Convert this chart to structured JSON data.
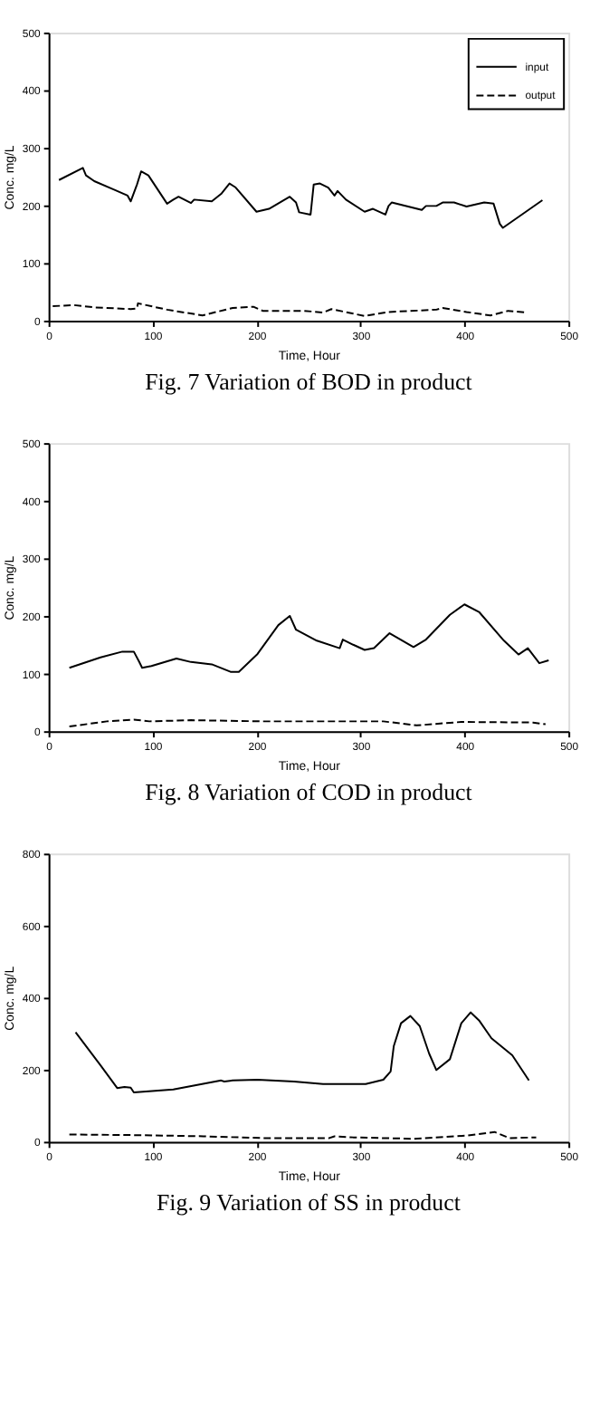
{
  "chart_data": [
    {
      "type": "line",
      "title": "Fig. 7 Variation of BOD in product",
      "xlabel": "Time, Hour",
      "ylabel": "Conc. mg/L",
      "xlim": [
        0,
        500
      ],
      "xticks": [
        0,
        100,
        200,
        300,
        400,
        500
      ],
      "ylim": [
        0,
        500
      ],
      "yticks": [
        0,
        100,
        200,
        300,
        400,
        500
      ],
      "grid": false,
      "legend": "top right",
      "series": [
        {
          "name": "input",
          "color": "#000000",
          "line_style": "solid",
          "x": [
            10,
            33,
            36,
            44,
            62,
            76,
            79,
            85,
            89,
            96,
            114,
            120,
            125,
            137,
            140,
            157,
            166,
            174,
            180,
            200,
            212,
            232,
            238,
            241,
            252,
            255,
            261,
            269,
            275,
            278,
            286,
            304,
            312,
            324,
            327,
            330,
            359,
            363,
            373,
            379,
            390,
            402,
            419,
            428,
            434,
            437,
            475
          ],
          "values": [
            244,
            265,
            252,
            242,
            228,
            217,
            207,
            236,
            259,
            252,
            203,
            210,
            215,
            204,
            210,
            207,
            220,
            238,
            231,
            189,
            194,
            215,
            205,
            188,
            184,
            236,
            238,
            231,
            217,
            225,
            210,
            189,
            194,
            184,
            199,
            205,
            192,
            199,
            199,
            205,
            205,
            198,
            205,
            203,
            168,
            161,
            209
          ]
        },
        {
          "name": "output",
          "color": "#000000",
          "line_style": "dashed",
          "x": [
            4,
            24,
            44,
            79,
            85,
            86,
            114,
            148,
            177,
            197,
            206,
            246,
            264,
            272,
            304,
            327,
            373,
            379,
            402,
            425,
            442,
            460
          ],
          "values": [
            25,
            27,
            23,
            20,
            21,
            30,
            19,
            9,
            22,
            24,
            17,
            17,
            14,
            20,
            8,
            15,
            19,
            22,
            15,
            9,
            17,
            14
          ]
        }
      ]
    },
    {
      "type": "line",
      "title": "Fig. 8 Variation of COD in product",
      "xlabel": "Time, Hour",
      "ylabel": "Conc. mg/L",
      "xlim": [
        0,
        500
      ],
      "xticks": [
        0,
        100,
        200,
        300,
        400,
        500
      ],
      "ylim": [
        0,
        500
      ],
      "yticks": [
        0,
        100,
        200,
        300,
        400,
        500
      ],
      "grid": false,
      "legend": "top right",
      "series": [
        {
          "name": "input",
          "color": "#000000",
          "line_style": "solid",
          "x": [
            20,
            50,
            71,
            82,
            87,
            90,
            99,
            123,
            137,
            157,
            175,
            183,
            201,
            221,
            232,
            238,
            258,
            280,
            283,
            293,
            304,
            313,
            328,
            351,
            363,
            386,
            400,
            414,
            438,
            452,
            461,
            472,
            481
          ],
          "values": [
            110,
            128,
            138,
            138,
            121,
            110,
            113,
            126,
            120,
            116,
            103,
            103,
            134,
            184,
            200,
            176,
            157,
            144,
            159,
            150,
            141,
            144,
            170,
            146,
            159,
            202,
            220,
            207,
            157,
            133,
            144,
            118,
            123
          ]
        },
        {
          "name": "output",
          "color": "#000000",
          "line_style": "dashed",
          "x": [
            20,
            56,
            82,
            97,
            137,
            206,
            322,
            354,
            397,
            466,
            478
          ],
          "values": [
            8,
            17,
            20,
            17,
            19,
            17,
            17,
            10,
            16,
            15,
            12
          ]
        }
      ]
    },
    {
      "type": "line",
      "title": "Fig. 9 Variation of SS in product",
      "xlabel": "Time, Hour",
      "ylabel": "Conc. mg/L",
      "xlim": [
        0,
        500
      ],
      "xticks": [
        0,
        100,
        200,
        300,
        400,
        500
      ],
      "ylim": [
        0,
        800
      ],
      "yticks": [
        0,
        200,
        400,
        600,
        800
      ],
      "grid": false,
      "legend": "top right",
      "series": [
        {
          "name": "input",
          "color": "#000000",
          "line_style": "solid",
          "x": [
            26,
            50,
            66,
            73,
            79,
            82,
            120,
            166,
            169,
            177,
            201,
            236,
            264,
            305,
            322,
            329,
            332,
            339,
            348,
            357,
            366,
            373,
            386,
            397,
            406,
            414,
            426,
            446,
            462
          ],
          "values": [
            304,
            212,
            149,
            152,
            150,
            137,
            145,
            170,
            167,
            170,
            172,
            167,
            160,
            160,
            172,
            195,
            265,
            329,
            349,
            321,
            245,
            199,
            229,
            329,
            359,
            337,
            287,
            240,
            170
          ]
        },
        {
          "name": "output",
          "color": "#000000",
          "line_style": "dashed",
          "x": [
            20,
            91,
            149,
            206,
            270,
            275,
            293,
            351,
            403,
            429,
            443,
            469
          ],
          "values": [
            20,
            18,
            15,
            10,
            10,
            15,
            12,
            8,
            17,
            27,
            10,
            12
          ]
        }
      ]
    }
  ]
}
